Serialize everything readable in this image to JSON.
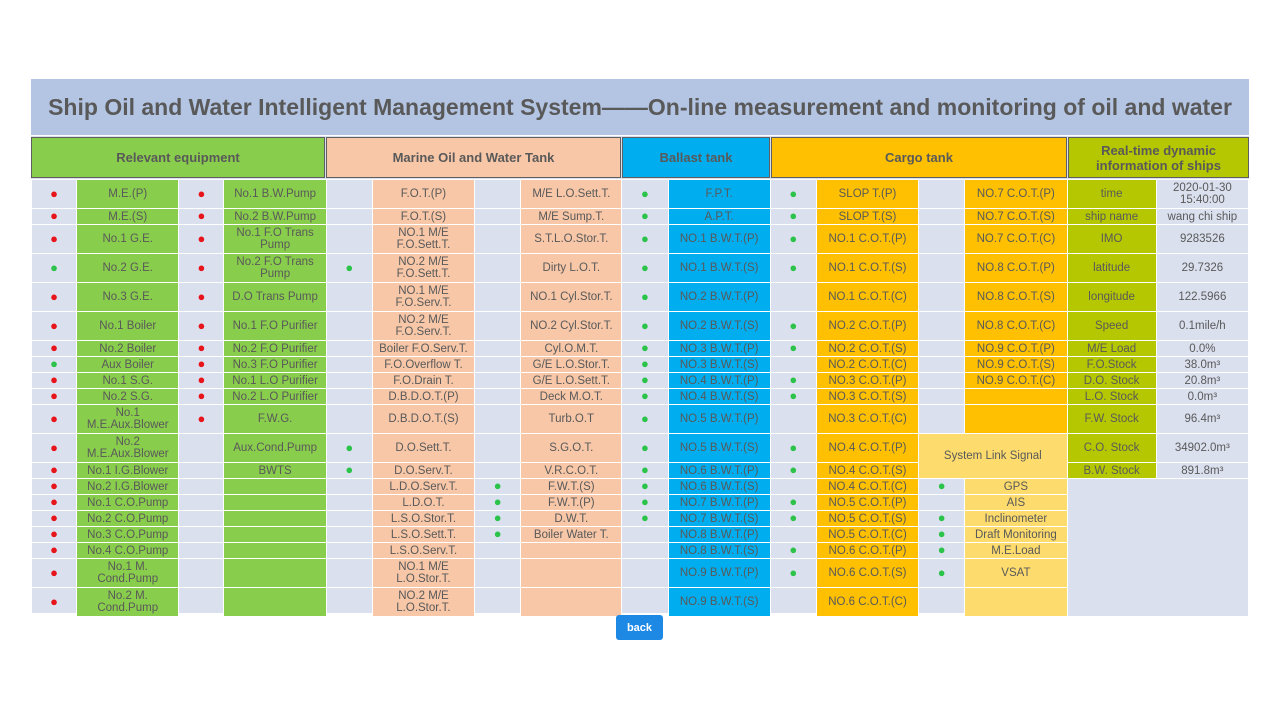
{
  "title": "Ship Oil and Water Intelligent Management System——On-line measurement and monitoring of oil and water",
  "headers": {
    "equipment": "Relevant equipment",
    "oil_water_tank": "Marine Oil and Water Tank",
    "ballast_tank": "Ballast tank",
    "cargo_tank": "Cargo tank",
    "ship_info": "Real-time dynamic information of ships"
  },
  "status_colors": {
    "red": "#e8141b",
    "green": "#2bc34a"
  },
  "status_symbol": "●",
  "system_link": {
    "title": "System Link Signal"
  },
  "back_label": "back",
  "rows": [
    {
      "h": 29,
      "a": [
        "red",
        "M.E.(P)"
      ],
      "b": [
        "red",
        "No.1 B.W.Pump"
      ],
      "c": [
        "",
        "F.O.T.(P)"
      ],
      "d": [
        "",
        "M/E L.O.Sett.T."
      ],
      "e": [
        "green",
        "F.P.T."
      ],
      "f": [
        "green",
        "SLOP T.(P)"
      ],
      "g": [
        "",
        "NO.7 C.O.T.(P)"
      ],
      "s": [
        "time",
        "2020-01-30 15:40:00"
      ]
    },
    {
      "h": 16,
      "a": [
        "red",
        "M.E.(S)"
      ],
      "b": [
        "red",
        "No.2 B.W.Pump"
      ],
      "c": [
        "",
        "F.O.T.(S)"
      ],
      "d": [
        "",
        "M/E Sump.T."
      ],
      "e": [
        "green",
        "A.P.T."
      ],
      "f": [
        "green",
        "SLOP T.(S)"
      ],
      "g": [
        "",
        "NO.7 C.O.T.(S)"
      ],
      "s": [
        "ship name",
        "wang chi ship"
      ]
    },
    {
      "h": 29,
      "a": [
        "red",
        "No.1 G.E."
      ],
      "b": [
        "red",
        "No.1 F.O Trans Pump"
      ],
      "c": [
        "",
        "NO.1 M/E F.O.Sett.T."
      ],
      "d": [
        "",
        "S.T.L.O.Stor.T."
      ],
      "e": [
        "green",
        "NO.1 B.W.T.(P)"
      ],
      "f": [
        "green",
        "NO.1 C.O.T.(P)"
      ],
      "g": [
        "",
        "NO.7 C.O.T.(C)"
      ],
      "s": [
        "IMO",
        "9283526"
      ]
    },
    {
      "h": 29,
      "a": [
        "green",
        "No.2 G.E."
      ],
      "b": [
        "red",
        "No.2 F.O Trans Pump"
      ],
      "c": [
        "green",
        "NO.2 M/E F.O.Sett.T."
      ],
      "d": [
        "",
        "Dirty L.O.T."
      ],
      "e": [
        "green",
        "NO.1 B.W.T.(S)"
      ],
      "f": [
        "green",
        "NO.1 C.O.T.(S)"
      ],
      "g": [
        "",
        "NO.8 C.O.T.(P)"
      ],
      "s": [
        "latitude",
        "29.7326"
      ]
    },
    {
      "h": 29,
      "a": [
        "red",
        "No.3 G.E."
      ],
      "b": [
        "red",
        "D.O Trans Pump"
      ],
      "c": [
        "",
        "NO.1 M/E F.O.Serv.T."
      ],
      "d": [
        "",
        "NO.1 Cyl.Stor.T."
      ],
      "e": [
        "green",
        "NO.2 B.W.T.(P)"
      ],
      "f": [
        "",
        "NO.1 C.O.T.(C)"
      ],
      "g": [
        "",
        "NO.8 C.O.T.(S)"
      ],
      "s": [
        "longitude",
        "122.5966"
      ]
    },
    {
      "h": 29,
      "a": [
        "red",
        "No.1 Boiler"
      ],
      "b": [
        "red",
        "No.1 F.O Purifier"
      ],
      "c": [
        "",
        "NO.2 M/E F.O.Serv.T."
      ],
      "d": [
        "",
        "NO.2 Cyl.Stor.T."
      ],
      "e": [
        "green",
        "NO.2 B.W.T.(S)"
      ],
      "f": [
        "green",
        "NO.2 C.O.T.(P)"
      ],
      "g": [
        "",
        "NO.8 C.O.T.(C)"
      ],
      "s": [
        "Speed",
        "0.1mile/h"
      ]
    },
    {
      "h": 16,
      "a": [
        "red",
        "No.2 Boiler"
      ],
      "b": [
        "red",
        "No.2 F.O Purifier"
      ],
      "c": [
        "",
        "Boiler F.O.Serv.T."
      ],
      "d": [
        "",
        "Cyl.O.M.T."
      ],
      "e": [
        "green",
        "NO.3 B.W.T.(P)"
      ],
      "f": [
        "green",
        "NO.2 C.O.T.(S)"
      ],
      "g": [
        "",
        "NO.9 C.O.T.(P)"
      ],
      "s": [
        "M/E Load",
        "0.0%"
      ]
    },
    {
      "h": 16,
      "a": [
        "green",
        "Aux Boiler"
      ],
      "b": [
        "red",
        "No.3 F.O Purifier"
      ],
      "c": [
        "",
        "F.O.Overflow T."
      ],
      "d": [
        "",
        "G/E L.O.Stor.T."
      ],
      "e": [
        "green",
        "NO.3 B.W.T.(S)"
      ],
      "f": [
        "",
        "NO.2 C.O.T.(C)"
      ],
      "g": [
        "",
        "NO.9 C.O.T.(S)"
      ],
      "s": [
        "F.O.Stock",
        "38.0m³"
      ]
    },
    {
      "h": 16,
      "a": [
        "red",
        "No.1 S.G."
      ],
      "b": [
        "red",
        "No.1 L.O Purifier"
      ],
      "c": [
        "",
        "F.O.Drain T."
      ],
      "d": [
        "",
        "G/E L.O.Sett.T."
      ],
      "e": [
        "green",
        "NO.4 B.W.T.(P)"
      ],
      "f": [
        "green",
        "NO.3 C.O.T.(P)"
      ],
      "g": [
        "",
        "NO.9 C.O.T.(C)"
      ],
      "s": [
        "D.O. Stock",
        "20.8m³"
      ]
    },
    {
      "h": 16,
      "a": [
        "red",
        "No.2 S.G."
      ],
      "b": [
        "red",
        "No.2 L.O Purifier"
      ],
      "c": [
        "",
        "D.B.D.O.T.(P)"
      ],
      "d": [
        "",
        "Deck M.O.T."
      ],
      "e": [
        "green",
        "NO.4 B.W.T.(S)"
      ],
      "f": [
        "green",
        "NO.3 C.O.T.(S)"
      ],
      "g": [
        "",
        ""
      ],
      "s": [
        "L.O. Stock",
        "0.0m³"
      ]
    },
    {
      "h": 29,
      "a": [
        "red",
        "No.1 M.E.Aux.Blower"
      ],
      "b": [
        "red",
        "F.W.G."
      ],
      "c": [
        "",
        "D.B.D.O.T.(S)"
      ],
      "d": [
        "",
        "Turb.O.T"
      ],
      "e": [
        "green",
        "NO.5 B.W.T.(P)"
      ],
      "f": [
        "",
        "NO.3 C.O.T.(C)"
      ],
      "g": [
        "",
        ""
      ],
      "s": [
        "F.W. Stock",
        "96.4m³"
      ]
    },
    {
      "h": 29,
      "a": [
        "red",
        "No.2 M.E.Aux.Blower"
      ],
      "b": [
        "",
        "Aux.Cond.Pump"
      ],
      "c": [
        "green",
        "D.O.Sett.T."
      ],
      "d": [
        "",
        "S.G.O.T."
      ],
      "e": [
        "green",
        "NO.5 B.W.T.(S)"
      ],
      "f": [
        "green",
        "NO.4 C.O.T.(P)"
      ],
      "s": [
        "C.O. Stock",
        "34902.0m³"
      ]
    },
    {
      "h": 16,
      "a": [
        "red",
        "No.1 I.G.Blower"
      ],
      "b": [
        "",
        "BWTS"
      ],
      "c": [
        "green",
        "D.O.Serv.T."
      ],
      "d": [
        "",
        "V.R.C.O.T."
      ],
      "e": [
        "green",
        "NO.6 B.W.T.(P)"
      ],
      "f": [
        "green",
        "NO.4 C.O.T.(S)"
      ],
      "s": [
        "B.W. Stock",
        "891.8m³"
      ]
    },
    {
      "h": 16,
      "a": [
        "red",
        "No.2 I.G.Blower"
      ],
      "b": [
        "",
        ""
      ],
      "c": [
        "",
        "L.D.O.Serv.T."
      ],
      "d": [
        "green",
        "F.W.T.(S)"
      ],
      "e": [
        "green",
        "NO.6 B.W.T.(S)"
      ],
      "f": [
        "",
        "NO.4 C.O.T.(C)"
      ],
      "g": [
        "green",
        "GPS"
      ]
    },
    {
      "h": 16,
      "a": [
        "red",
        "No.1 C.O.Pump"
      ],
      "b": [
        "",
        ""
      ],
      "c": [
        "",
        "L.D.O.T."
      ],
      "d": [
        "green",
        "F.W.T.(P)"
      ],
      "e": [
        "green",
        "NO.7 B.W.T.(P)"
      ],
      "f": [
        "green",
        "NO.5 C.O.T.(P)"
      ],
      "g": [
        "",
        "AIS"
      ]
    },
    {
      "h": 16,
      "a": [
        "red",
        "No.2 C.O.Pump"
      ],
      "b": [
        "",
        ""
      ],
      "c": [
        "",
        "L.S.O.Stor.T."
      ],
      "d": [
        "green",
        "D.W.T."
      ],
      "e": [
        "green",
        "NO.7 B.W.T.(S)"
      ],
      "f": [
        "green",
        "NO.5 C.O.T.(S)"
      ],
      "g": [
        "green",
        "Inclinometer"
      ]
    },
    {
      "h": 16,
      "a": [
        "red",
        "No.3 C.O.Pump"
      ],
      "b": [
        "",
        ""
      ],
      "c": [
        "",
        "L.S.O.Sett.T."
      ],
      "d": [
        "green",
        "Boiler Water T."
      ],
      "e": [
        "",
        "NO.8 B.W.T.(P)"
      ],
      "f": [
        "",
        "NO.5 C.O.T.(C)"
      ],
      "g": [
        "green",
        "Draft Monitoring"
      ]
    },
    {
      "h": 16,
      "a": [
        "red",
        "No.4 C.O.Pump"
      ],
      "b": [
        "",
        ""
      ],
      "c": [
        "",
        "L.S.O.Serv.T."
      ],
      "d": [
        "",
        ""
      ],
      "e": [
        "",
        "NO.8 B.W.T.(S)"
      ],
      "f": [
        "green",
        "NO.6 C.O.T.(P)"
      ],
      "g": [
        "green",
        "M.E.Load"
      ]
    },
    {
      "h": 29,
      "a": [
        "red",
        "No.1 M. Cond.Pump"
      ],
      "b": [
        "",
        ""
      ],
      "c": [
        "",
        "NO.1 M/E L.O.Stor.T."
      ],
      "d": [
        "",
        ""
      ],
      "e": [
        "",
        "NO.9 B.W.T.(P)"
      ],
      "f": [
        "green",
        "NO.6 C.O.T.(S)"
      ],
      "g": [
        "green",
        "VSAT"
      ]
    },
    {
      "h": 29,
      "a": [
        "red",
        "No.2 M. Cond.Pump"
      ],
      "b": [
        "",
        ""
      ],
      "c": [
        "",
        "NO.2 M/E L.O.Stor.T."
      ],
      "d": [
        "",
        ""
      ],
      "e": [
        "",
        "NO.9 B.W.T.(S)"
      ],
      "f": [
        "",
        "NO.6 C.O.T.(C)"
      ],
      "g": [
        "",
        ""
      ]
    }
  ]
}
